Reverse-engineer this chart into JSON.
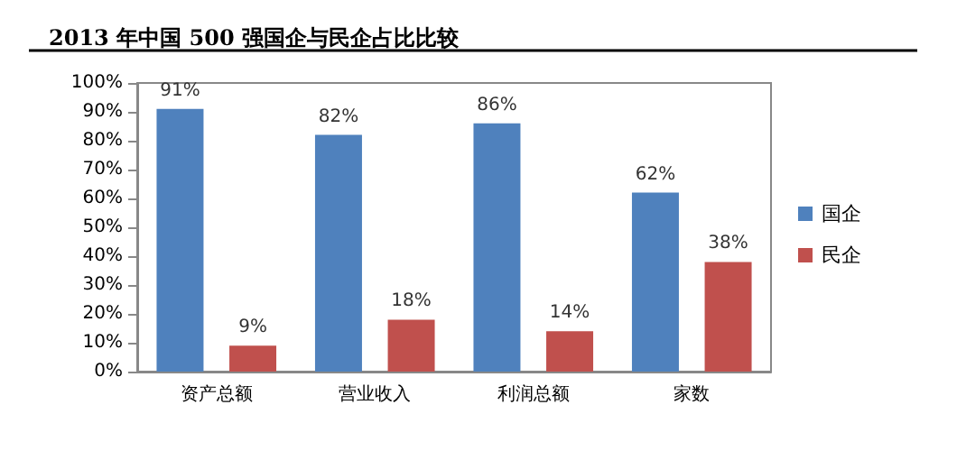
{
  "chart_data": {
    "type": "bar",
    "title": "2013 年中国 500 强国企与民企占比比较",
    "categories": [
      "资产总额",
      "营业收入",
      "利润总额",
      "家数"
    ],
    "series": [
      {
        "name": "国企",
        "color": "#4f81bd",
        "values": [
          91,
          82,
          86,
          62
        ],
        "value_labels": [
          "91%",
          "82%",
          "86%",
          "62%"
        ]
      },
      {
        "name": "民企",
        "color": "#c0504d",
        "values": [
          9,
          18,
          14,
          38
        ],
        "value_labels": [
          "9%",
          "18%",
          "14%",
          "38%"
        ]
      }
    ],
    "ylim": [
      0,
      100
    ],
    "yticks": [
      {
        "value": 0,
        "label": "0%"
      },
      {
        "value": 10,
        "label": "10%"
      },
      {
        "value": 20,
        "label": "20%"
      },
      {
        "value": 30,
        "label": "30%"
      },
      {
        "value": 40,
        "label": "40%"
      },
      {
        "value": 50,
        "label": "50%"
      },
      {
        "value": 60,
        "label": "60%"
      },
      {
        "value": 70,
        "label": "70%"
      },
      {
        "value": 80,
        "label": "80%"
      },
      {
        "value": 90,
        "label": "90%"
      },
      {
        "value": 100,
        "label": "100%"
      }
    ],
    "grid": false,
    "legend": "right"
  }
}
